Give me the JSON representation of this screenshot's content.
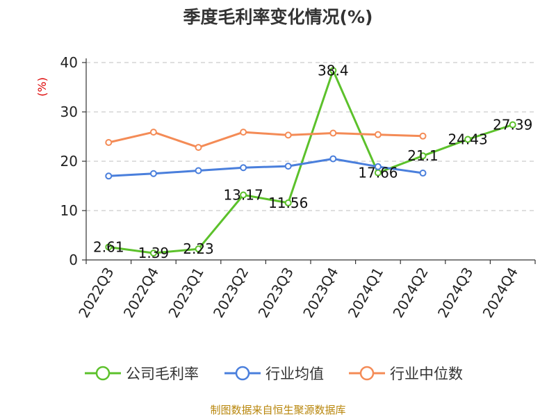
{
  "chart_data": {
    "type": "line",
    "title": "季度毛利率变化情况(%)",
    "xlabel": "",
    "ylabel": "(%)",
    "ylim": [
      0,
      40
    ],
    "yticks": [
      0,
      10,
      20,
      30,
      40
    ],
    "grid": true,
    "legend_position": "bottom",
    "categories": [
      "2022Q3",
      "2022Q4",
      "2023Q1",
      "2023Q2",
      "2023Q3",
      "2023Q4",
      "2024Q1",
      "2024Q2",
      "2024Q3",
      "2024Q4"
    ],
    "series": [
      {
        "name": "公司毛利率",
        "color": "#5cc12b",
        "values": [
          2.61,
          1.39,
          2.23,
          13.17,
          11.56,
          38.4,
          17.66,
          21.1,
          24.43,
          27.39
        ],
        "labels": [
          "2.61",
          "1.39",
          "2.23",
          "13.17",
          "11.56",
          "38.4",
          "17.66",
          "21.1",
          "24.43",
          "27.39"
        ]
      },
      {
        "name": "行业均值",
        "color": "#4a7fdc",
        "values": [
          17.0,
          17.5,
          18.1,
          18.7,
          19.0,
          20.5,
          18.9,
          17.6,
          null,
          null
        ]
      },
      {
        "name": "行业中位数",
        "color": "#f48b56",
        "values": [
          23.8,
          25.9,
          22.8,
          25.9,
          25.3,
          25.7,
          25.4,
          25.1,
          null,
          null
        ]
      }
    ],
    "source": "制图数据来自恒生聚源数据库",
    "colors": {
      "ylabel": "#dd0000",
      "source": "#b8860b",
      "axis": "#333333",
      "grid": "#cccccc"
    }
  }
}
